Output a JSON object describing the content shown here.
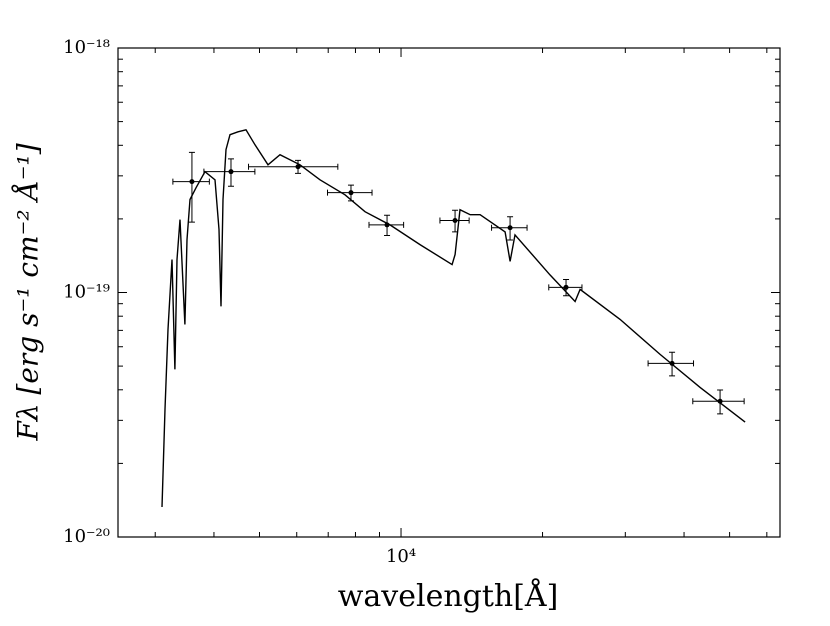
{
  "chart_data": {
    "type": "line",
    "xlabel": "wavelength[Å]",
    "ylabel": "Fλ [erg s⁻¹ cm⁻² Å⁻¹]",
    "xscale": "log",
    "yscale": "log",
    "xlim": [
      2500,
      64000
    ],
    "ylim": [
      1e-20,
      1e-18
    ],
    "xticks": [
      {
        "value": 10000,
        "label": "10⁴"
      }
    ],
    "yticks": [
      {
        "value": 1e-20,
        "label": "10⁻²⁰"
      },
      {
        "value": 1e-19,
        "label": "10⁻¹⁹"
      },
      {
        "value": 1e-18,
        "label": "10⁻¹⁸"
      }
    ],
    "xminorticks": [
      3000,
      4000,
      5000,
      6000,
      7000,
      8000,
      9000,
      20000,
      30000,
      40000,
      50000,
      60000
    ],
    "yminorticks": [
      2e-20,
      3e-20,
      4e-20,
      5e-20,
      6e-20,
      7e-20,
      8e-20,
      9e-20,
      2e-19,
      3e-19,
      4e-19,
      5e-19,
      6e-19,
      7e-19,
      8e-19,
      9e-19
    ],
    "series": [
      {
        "type": "line",
        "color": "#000000",
        "x": [
          3101,
          3147,
          3194,
          3257,
          3304,
          3337,
          3387,
          3470,
          3505,
          3557,
          3663,
          3828,
          4020,
          4100,
          4140,
          4181,
          4243,
          4327,
          4500,
          4680,
          4891,
          5212,
          5528,
          6097,
          6725,
          7601,
          8384,
          9476,
          10975,
          12840,
          13030,
          13350,
          14030,
          14730,
          16650,
          17060,
          17480,
          20750,
          23460,
          24040,
          29240,
          35570,
          43270,
          53940
        ],
        "values": [
          1.326e-20,
          3.33e-20,
          7.06e-20,
          1.364e-19,
          4.85e-20,
          1.364e-19,
          1.986e-19,
          7.4e-20,
          1.645e-19,
          2.4e-19,
          2.68e-19,
          3.12e-19,
          2.89e-19,
          1.81e-19,
          8.77e-20,
          2.4e-19,
          3.84e-19,
          4.42e-19,
          4.54e-19,
          4.63e-19,
          4.02e-19,
          3.33e-19,
          3.66e-19,
          3.33e-19,
          2.89e-19,
          2.51e-19,
          2.14e-19,
          1.89e-19,
          1.57e-19,
          1.3e-19,
          1.43e-19,
          2.18e-19,
          2.08e-19,
          2.08e-19,
          1.77e-19,
          1.34e-19,
          1.72e-19,
          1.18e-19,
          9.19e-20,
          1.03e-19,
          7.76e-20,
          5.58e-20,
          4.09e-20,
          2.95e-20
        ]
      },
      {
        "type": "errorbar",
        "color": "#000000",
        "x": [
          3591,
          4348,
          6038,
          7826,
          9338,
          13030,
          17060,
          22440,
          37720,
          47720
        ],
        "xerr": [
          320,
          540,
          1300,
          850,
          790,
          930,
          1480,
          1820,
          4180,
          5970
        ],
        "values": [
          2.84e-19,
          3.12e-19,
          3.27e-19,
          2.56e-19,
          1.89e-19,
          1.97e-19,
          1.84e-19,
          1.05e-19,
          5.13e-20,
          3.59e-20
        ],
        "yerr": [
          9e-20,
          4e-20,
          2e-20,
          1.9e-20,
          1.8e-20,
          2e-20,
          2e-20,
          8e-21,
          5.7e-21,
          4e-21
        ]
      }
    ]
  }
}
